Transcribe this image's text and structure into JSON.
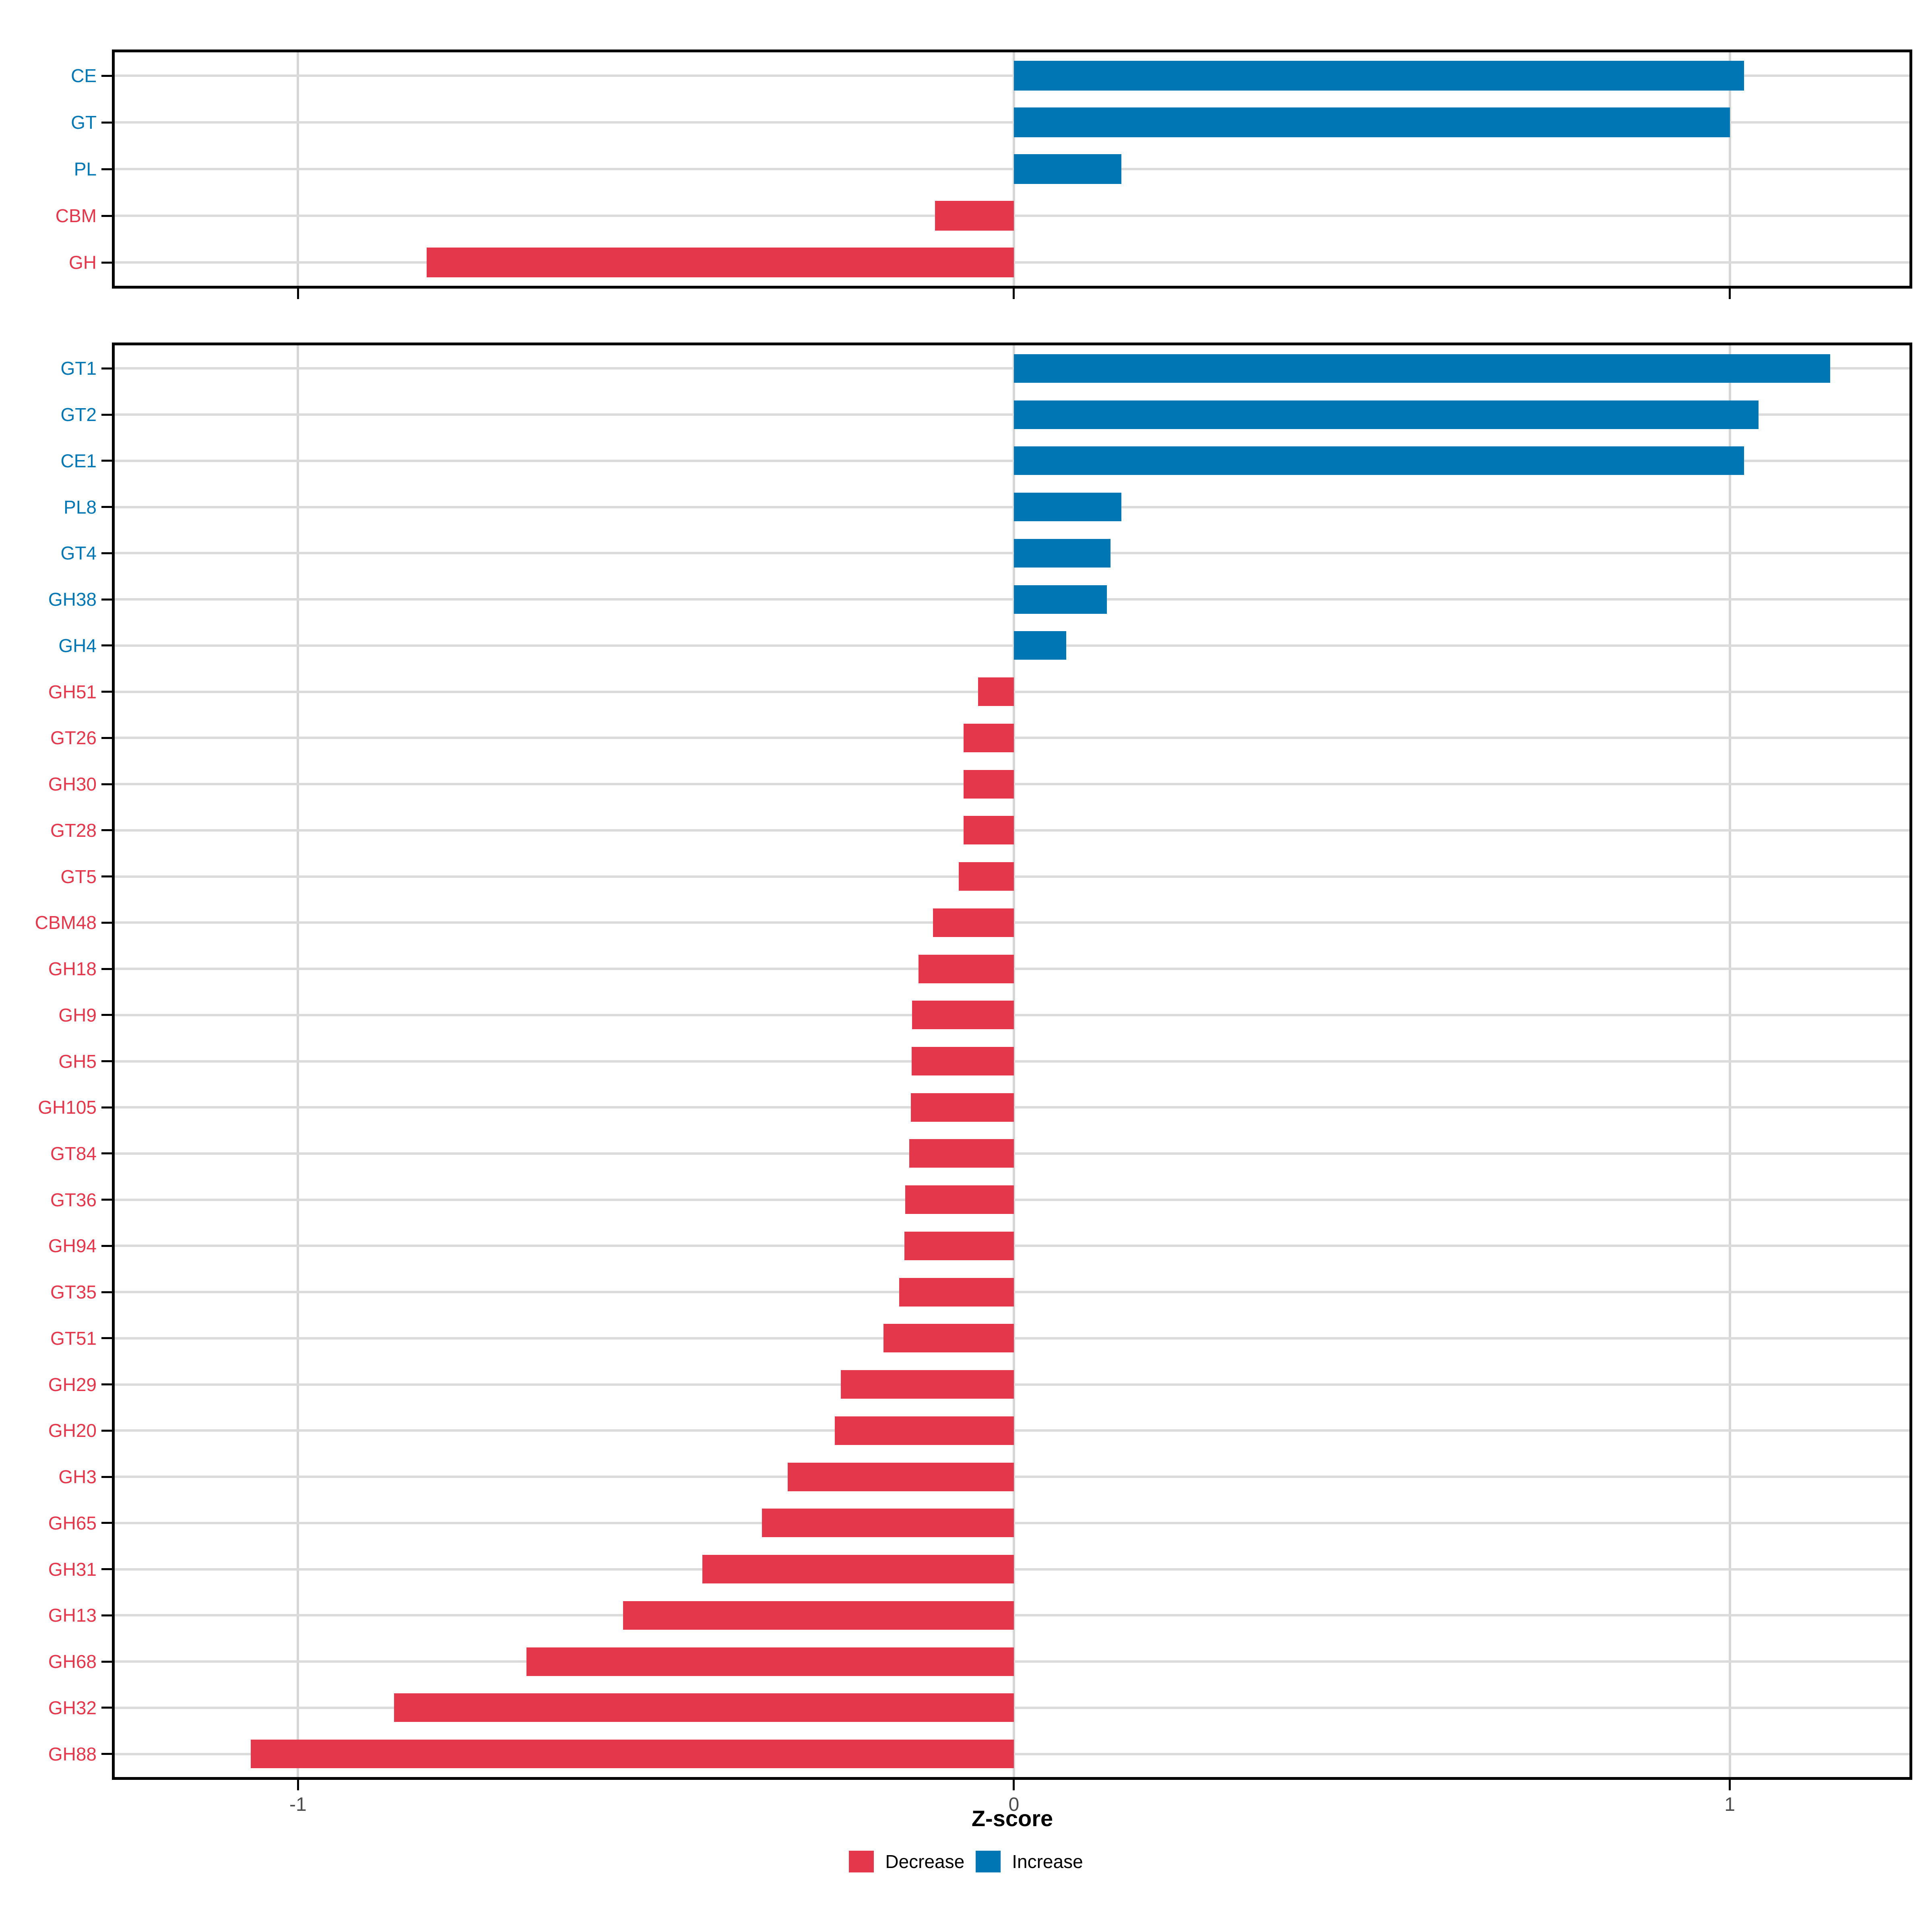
{
  "chart_data": {
    "type": "bar",
    "orientation": "horizontal",
    "title": "",
    "xlabel": "Z-score",
    "ylabel": "",
    "x_ticks": [
      -1,
      0,
      1
    ],
    "x_tick_labels": [
      "-1",
      "0",
      "1"
    ],
    "xlim": [
      -1.256,
      1.251
    ],
    "grid": true,
    "legend_position": "bottom",
    "colors": {
      "increase": "#0077B5",
      "decrease": "#E5374B",
      "gridline": "#dbdbdb",
      "tick_label": "#4d4d4d"
    },
    "legend": [
      {
        "label": "Decrease",
        "color": "#E5374B",
        "key": "decrease"
      },
      {
        "label": "Increase",
        "color": "#0077B5",
        "key": "increase"
      }
    ],
    "panels": [
      {
        "name": "family-summary",
        "categories": [
          "CE",
          "GT",
          "PL",
          "CBM",
          "GH"
        ],
        "values": [
          1.02,
          1.0,
          0.15,
          -0.11,
          -0.82
        ]
      },
      {
        "name": "subfamily-detail",
        "categories": [
          "GT1",
          "GT2",
          "CE1",
          "PL8",
          "GT4",
          "GH38",
          "GH4",
          "GH51",
          "GT26",
          "GH30",
          "GT28",
          "GT5",
          "CBM48",
          "GH18",
          "GH9",
          "GH5",
          "GH105",
          "GT84",
          "GT36",
          "GH94",
          "GT35",
          "GT51",
          "GH29",
          "GH20",
          "GH3",
          "GH65",
          "GH31",
          "GH13",
          "GH68",
          "GH32",
          "GH88"
        ],
        "values": [
          1.14,
          1.04,
          1.02,
          0.15,
          0.135,
          0.13,
          0.073,
          -0.05,
          -0.07,
          -0.07,
          -0.07,
          -0.077,
          -0.113,
          -0.133,
          -0.142,
          -0.143,
          -0.144,
          -0.146,
          -0.152,
          -0.153,
          -0.16,
          -0.182,
          -0.242,
          -0.25,
          -0.316,
          -0.352,
          -0.435,
          -0.546,
          -0.681,
          -0.866,
          -1.066
        ]
      }
    ]
  },
  "layout_note_values_visible_only": true,
  "legend_labels": {
    "decrease": "Decrease",
    "increase": "Increase"
  },
  "axis": {
    "xlabel": "Z-score"
  }
}
